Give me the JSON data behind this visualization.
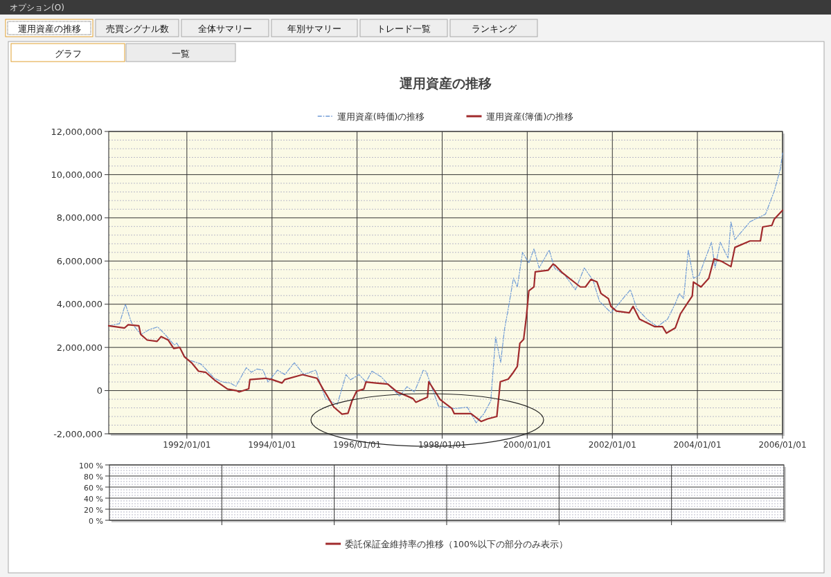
{
  "chart_data": [
    {
      "type": "line",
      "title": "運用資産の推移",
      "legend": "top",
      "grid": true,
      "annotations": [
        "オプション(O)",
        "運用資産の推移",
        "売買シグナル数",
        "全体サマリー",
        "年別サマリー",
        "トレード一覧",
        "ランキング",
        "グラフ",
        "一覧"
      ],
      "xlim": [
        "1990-03-01",
        "2006-01-01"
      ],
      "xticks": [
        {
          "value": "1992-01-01",
          "label": "1992/01/01"
        },
        {
          "value": "1994-01-01",
          "label": "1994/01/01"
        },
        {
          "value": "1996-01-01",
          "label": "1996/01/01"
        },
        {
          "value": "1998-01-01",
          "label": "1998/01/01"
        },
        {
          "value": "2000-01-01",
          "label": "2000/01/01"
        },
        {
          "value": "2002-01-01",
          "label": "2002/01/01"
        },
        {
          "value": "2004-01-01",
          "label": "2004/01/01"
        },
        {
          "value": "2006-01-01",
          "label": "2006/01/01"
        }
      ],
      "ylim": [
        -2000000,
        12000000
      ],
      "yticks": [
        {
          "value": -2000000,
          "label": "-2,000,000"
        },
        0,
        {
          "value": 2000000,
          "label": "2,000,000"
        },
        {
          "value": 4000000,
          "label": "4,000,000"
        },
        {
          "value": 6000000,
          "label": "6,000,000"
        },
        {
          "value": 8000000,
          "label": "8,000,000"
        },
        {
          "value": 10000000,
          "label": "10,000,000"
        },
        {
          "value": 12000000,
          "label": "12,000,000"
        }
      ],
      "series": [
        {
          "name": "運用資産(時価)の推移",
          "color": "#6f9bd6",
          "line_style": "dashed",
          "x": [
            "1990-03-01",
            "1990-06-01",
            "1990-07-22",
            "1990-09-12",
            "1990-12-01",
            "1991-02-15",
            "1991-04-25",
            "1991-06-28",
            "1991-09-15",
            "1991-10-05",
            "1992-01-01",
            "1992-05-01",
            "1992-08-22",
            "1992-11-01",
            "1993-01-08",
            "1993-02-25",
            "1993-05-25",
            "1993-07-08",
            "1993-08-25",
            "1993-10-15",
            "1993-11-28",
            "1994-02-18",
            "1994-04-20",
            "1994-07-12",
            "1994-10-01",
            "1995-01-12",
            "1995-02-02",
            "1995-04-05",
            "1995-05-15",
            "1995-07-15",
            "1995-09-28",
            "1995-11-05",
            "1996-01-18",
            "1996-03-18",
            "1996-05-08",
            "1996-07-28",
            "1996-10-12",
            "1997-01-01",
            "1997-03-05",
            "1997-05-08",
            "1997-07-22",
            "1997-08-15",
            "1997-12-01",
            "1998-04-15",
            "1998-08-05",
            "1998-10-20",
            "1998-12-25",
            "1999-02-22",
            "1999-04-05",
            "1999-05-18",
            "1999-06-20",
            "1999-07-22",
            "1999-09-05",
            "1999-10-08",
            "1999-11-22",
            "2000-01-15",
            "2000-02-28",
            "2000-04-12",
            "2000-07-08",
            "2000-08-22",
            "2000-11-22",
            "2001-02-18",
            "2001-05-05",
            "2001-07-20",
            "2001-09-12",
            "2001-12-20",
            "2002-02-05",
            "2002-06-05",
            "2002-07-30",
            "2002-10-25",
            "2003-01-22",
            "2003-04-20",
            "2003-06-25",
            "2003-07-30",
            "2003-09-05",
            "2003-10-15",
            "2003-11-28",
            "2004-01-15",
            "2004-05-01",
            "2004-06-01",
            "2004-07-15",
            "2004-09-20",
            "2004-10-15",
            "2004-11-18",
            "2005-03-28",
            "2005-08-08",
            "2005-10-22",
            "2005-12-15",
            "2006-01-01"
          ],
          "values": [
            3000000,
            3100000,
            4000000,
            3150000,
            2600000,
            2830000,
            2950000,
            2600000,
            2110000,
            2200000,
            1450000,
            1230000,
            580000,
            400000,
            350000,
            200000,
            1060000,
            850000,
            1000000,
            950000,
            400000,
            950000,
            740000,
            1290000,
            740000,
            950000,
            600000,
            -370000,
            -480000,
            -640000,
            740000,
            500000,
            740000,
            400000,
            900000,
            630000,
            180000,
            -260000,
            180000,
            -60000,
            940000,
            900000,
            -720000,
            -830000,
            -770000,
            -1490000,
            -1070000,
            -480000,
            2480000,
            1300000,
            2840000,
            3790000,
            5210000,
            4800000,
            6400000,
            5900000,
            6570000,
            5680000,
            6510000,
            5680000,
            5330000,
            4670000,
            5680000,
            5100000,
            4140000,
            3610000,
            3900000,
            4670000,
            3800000,
            3310000,
            2960000,
            3310000,
            4030000,
            4500000,
            4260000,
            6510000,
            5200000,
            5330000,
            6870000,
            5680000,
            6870000,
            6140000,
            7820000,
            6990000,
            7820000,
            8170000,
            9240000,
            10300000,
            11000000
          ]
        },
        {
          "name": "運用資産(簿価)の推移",
          "color": "#a02a2c",
          "line_style": "solid",
          "x": [
            "1990-03-01",
            "1990-07-15",
            "1990-08-15",
            "1990-11-15",
            "1990-12-01",
            "1991-01-25",
            "1991-04-20",
            "1991-05-25",
            "1991-07-25",
            "1991-09-10",
            "1991-11-01",
            "1991-12-10",
            "1992-02-10",
            "1992-04-10",
            "1992-06-10",
            "1992-09-01",
            "1992-12-15",
            "1993-03-01",
            "1993-03-25",
            "1993-06-15",
            "1993-06-25",
            "1993-11-05",
            "1994-01-01",
            "1994-03-28",
            "1994-04-20",
            "1994-09-20",
            "1995-01-22",
            "1995-03-15",
            "1995-04-22",
            "1995-06-15",
            "1995-08-25",
            "1995-10-15",
            "1995-11-18",
            "1995-12-28",
            "1996-02-28",
            "1996-03-18",
            "1996-06-10",
            "1996-09-20",
            "1996-12-10",
            "1997-03-05",
            "1997-04-25",
            "1997-05-20",
            "1997-08-28",
            "1997-09-08",
            "1997-12-15",
            "1998-03-25",
            "1998-04-15",
            "1998-09-05",
            "1998-10-20",
            "1998-12-01",
            "1999-01-25",
            "1999-04-15",
            "1999-05-15",
            "1999-07-22",
            "1999-08-25",
            "1999-10-08",
            "1999-10-30",
            "1999-12-01",
            "1999-12-25",
            "2000-01-15",
            "2000-02-28",
            "2000-03-10",
            "2000-06-28",
            "2000-08-10",
            "2000-08-28",
            "2000-10-30",
            "2001-04-01",
            "2001-05-15",
            "2001-07-01",
            "2001-08-22",
            "2001-09-25",
            "2001-11-28",
            "2001-12-20",
            "2002-02-05",
            "2002-05-25",
            "2002-06-28",
            "2002-08-22",
            "2003-01-01",
            "2003-03-08",
            "2003-04-10",
            "2003-06-25",
            "2003-08-08",
            "2003-10-05",
            "2003-11-18",
            "2003-11-28",
            "2004-02-01",
            "2004-04-08",
            "2004-05-22",
            "2004-07-28",
            "2004-10-15",
            "2004-11-18",
            "2005-03-28",
            "2005-06-25",
            "2005-07-15",
            "2005-10-01",
            "2005-10-22",
            "2006-01-01"
          ],
          "values": [
            3000000,
            2900000,
            3050000,
            3000000,
            2600000,
            2340000,
            2280000,
            2500000,
            2340000,
            1950000,
            2000000,
            1570000,
            1290000,
            900000,
            850000,
            460000,
            70000,
            0,
            -60000,
            80000,
            510000,
            570000,
            510000,
            350000,
            510000,
            740000,
            570000,
            70000,
            -260000,
            -760000,
            -1090000,
            -1050000,
            -480000,
            -30000,
            70000,
            400000,
            350000,
            300000,
            -60000,
            -250000,
            -370000,
            -540000,
            -300000,
            410000,
            -420000,
            -830000,
            -1070000,
            -1070000,
            -1250000,
            -1430000,
            -1310000,
            -1200000,
            410000,
            530000,
            770000,
            1120000,
            2190000,
            2370000,
            3430000,
            4620000,
            4800000,
            5500000,
            5570000,
            5860000,
            5800000,
            5450000,
            4800000,
            4800000,
            5150000,
            5030000,
            4500000,
            4260000,
            3900000,
            3680000,
            3600000,
            3900000,
            3310000,
            2960000,
            2960000,
            2660000,
            2900000,
            3550000,
            4030000,
            4380000,
            5030000,
            4800000,
            5200000,
            6100000,
            5980000,
            5740000,
            6630000,
            6930000,
            6930000,
            7580000,
            7650000,
            7940000,
            8350000
          ]
        }
      ]
    },
    {
      "type": "line",
      "legend": "bottom",
      "grid": true,
      "tick_labels": "y",
      "categories": [
        null,
        null,
        null,
        null,
        null,
        null
      ],
      "ylim": [
        0,
        100
      ],
      "yticks": [
        {
          "value": 0,
          "label": "0 %"
        },
        {
          "value": 20,
          "label": "20 %"
        },
        {
          "value": 40,
          "label": "40 %"
        },
        {
          "value": 60,
          "label": "60 %"
        },
        {
          "value": 80,
          "label": "80 %"
        },
        {
          "value": 100,
          "label": "100 %"
        }
      ],
      "series": [
        {
          "name": "委託保証金維持率の推移（100%以下の部分のみ表示）",
          "color": "#a02a2c",
          "line_style": "solid",
          "values": [
            null,
            null,
            null,
            null,
            null,
            null
          ]
        }
      ]
    }
  ]
}
